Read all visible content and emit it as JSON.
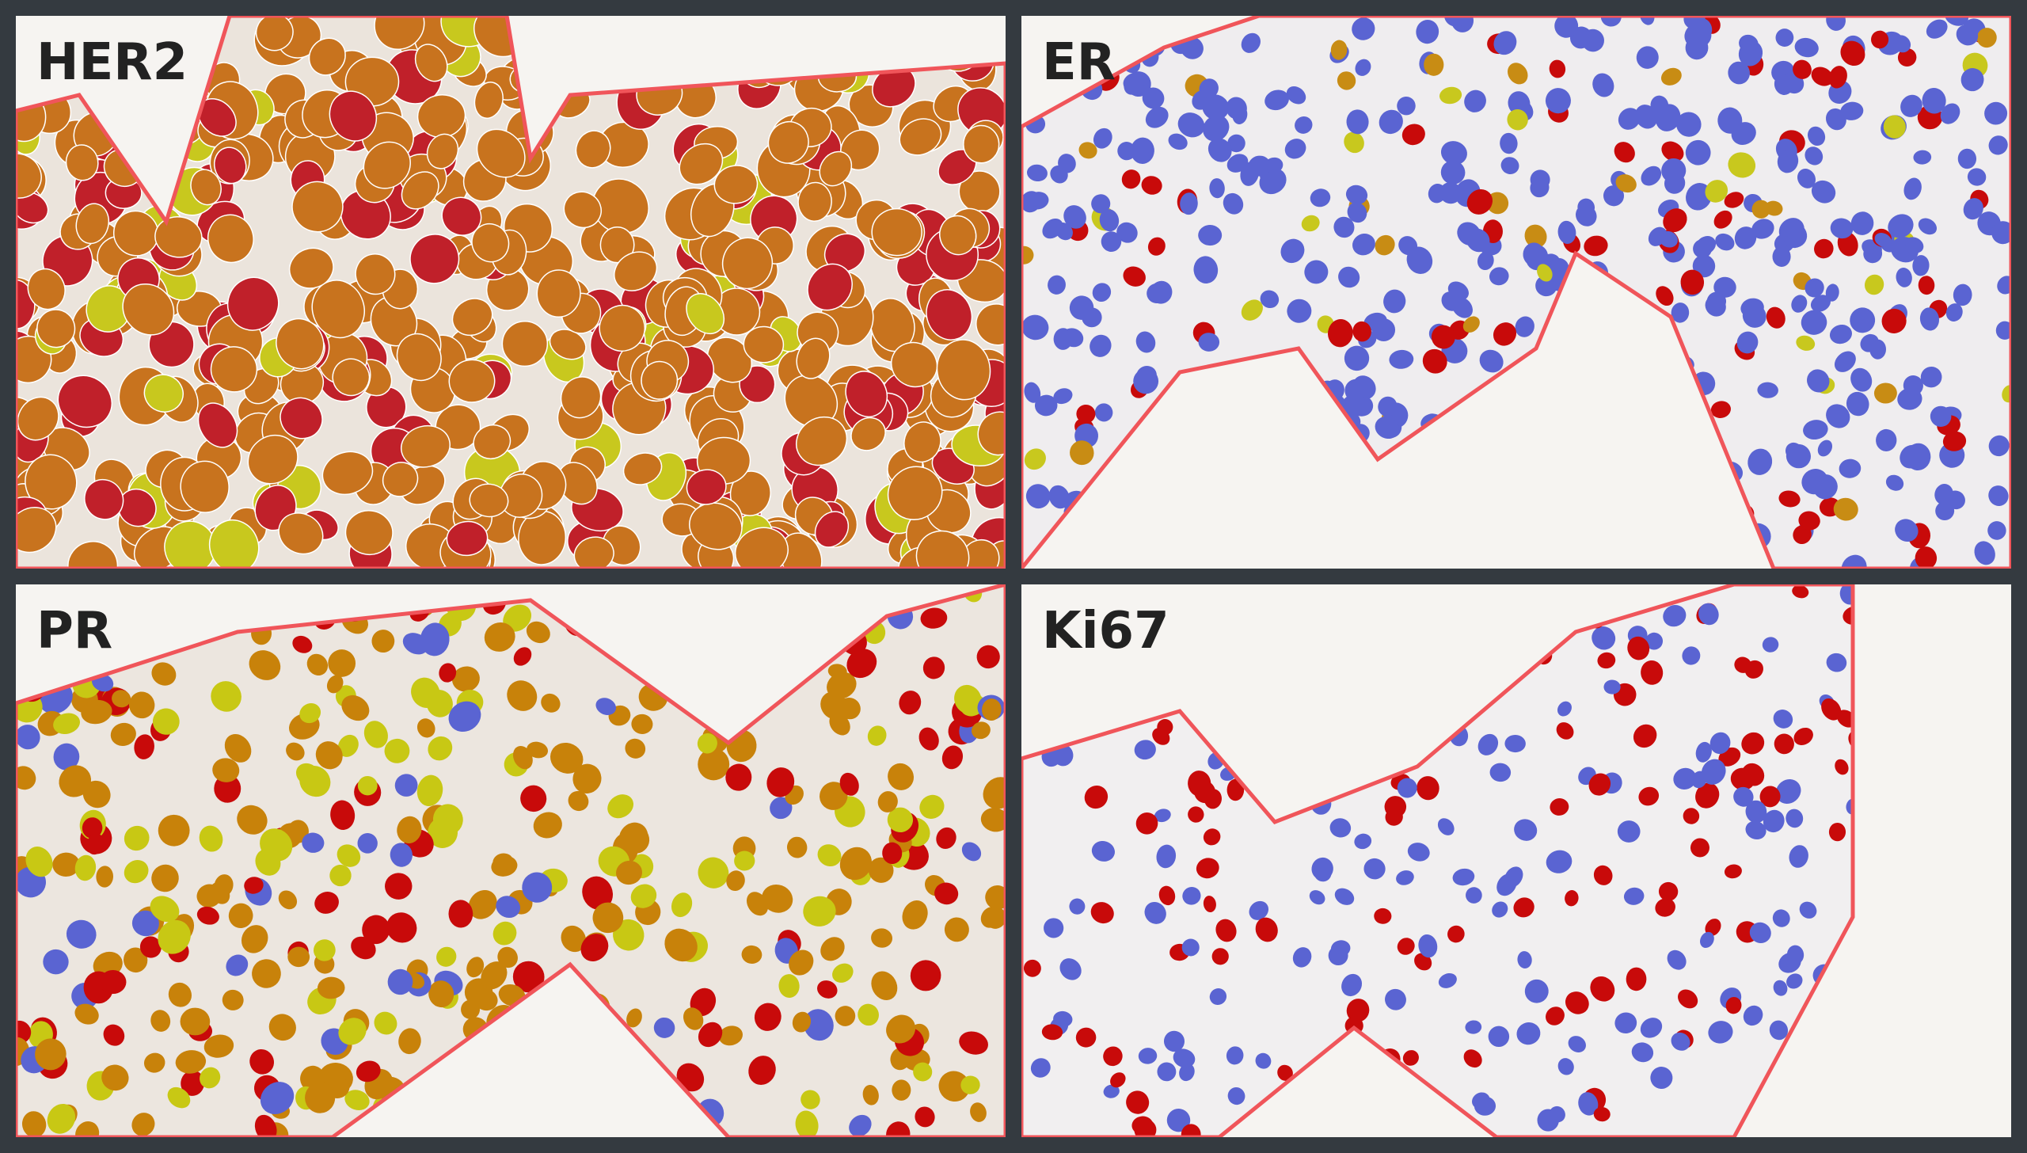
{
  "panels": [
    {
      "label": "HER2"
    },
    {
      "label": "ER"
    },
    {
      "label": "PR"
    },
    {
      "label": "Ki67"
    }
  ]
}
